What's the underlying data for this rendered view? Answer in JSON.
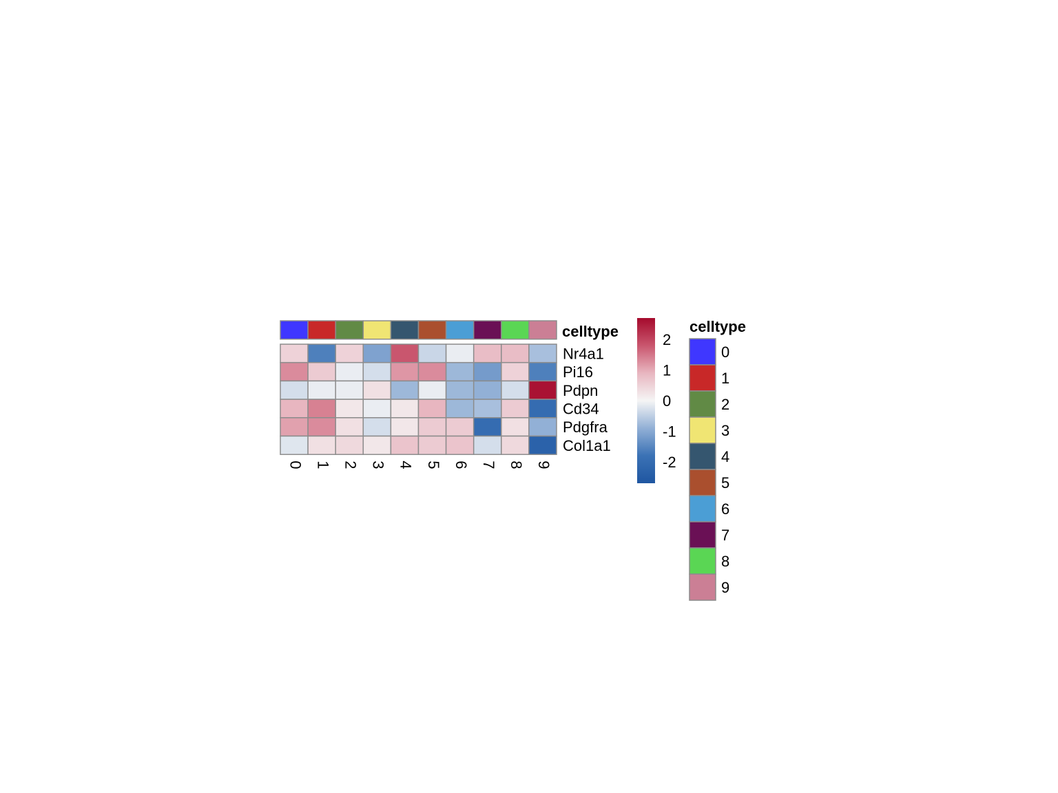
{
  "chart_data": {
    "type": "heatmap",
    "x_categories": [
      "0",
      "1",
      "2",
      "3",
      "4",
      "5",
      "6",
      "7",
      "8",
      "9"
    ],
    "y_categories": [
      "Nr4a1",
      "Pi16",
      "Pdpn",
      "Cd34",
      "Pdgfra",
      "Col1a1"
    ],
    "values": [
      [
        0.5,
        -1.6,
        0.5,
        -1.1,
        1.8,
        -0.4,
        -0.1,
        0.8,
        0.8,
        -0.7
      ],
      [
        1.3,
        0.6,
        -0.1,
        -0.3,
        1.2,
        1.3,
        -0.8,
        -1.2,
        0.5,
        -1.6
      ],
      [
        -0.3,
        -0.1,
        -0.1,
        0.3,
        -0.8,
        -0.1,
        -0.8,
        -0.9,
        -0.3,
        2.6
      ],
      [
        0.9,
        1.4,
        0.2,
        -0.1,
        0.2,
        0.9,
        -0.8,
        -0.7,
        0.6,
        -2.0
      ],
      [
        1.1,
        1.3,
        0.3,
        -0.3,
        0.2,
        0.6,
        0.6,
        -2.0,
        0.3,
        -0.9
      ],
      [
        -0.2,
        0.3,
        0.4,
        0.2,
        0.7,
        0.6,
        0.7,
        -0.3,
        0.4,
        -2.3
      ]
    ],
    "colorbar": {
      "ticks": [
        2,
        1,
        0,
        -1,
        -2
      ],
      "range": [
        -2.7,
        2.7
      ],
      "colors": [
        "#1f56a1",
        "#3b72b5",
        "#92b0d6",
        "#f5f5f5",
        "#e8b6c0",
        "#c9566e",
        "#a50a2c"
      ]
    },
    "annotation": {
      "title": "celltype",
      "values": [
        "0",
        "1",
        "2",
        "3",
        "4",
        "5",
        "6",
        "7",
        "8",
        "9"
      ],
      "colors": [
        "#3f37ff",
        "#c82828",
        "#618a45",
        "#f0e573",
        "#35566f",
        "#aa4f2e",
        "#4b9ed5",
        "#6a1055",
        "#5ad654",
        "#cb7f95"
      ]
    },
    "legend": {
      "title": "celltype",
      "labels": [
        "0",
        "1",
        "2",
        "3",
        "4",
        "5",
        "6",
        "7",
        "8",
        "9"
      ]
    }
  }
}
